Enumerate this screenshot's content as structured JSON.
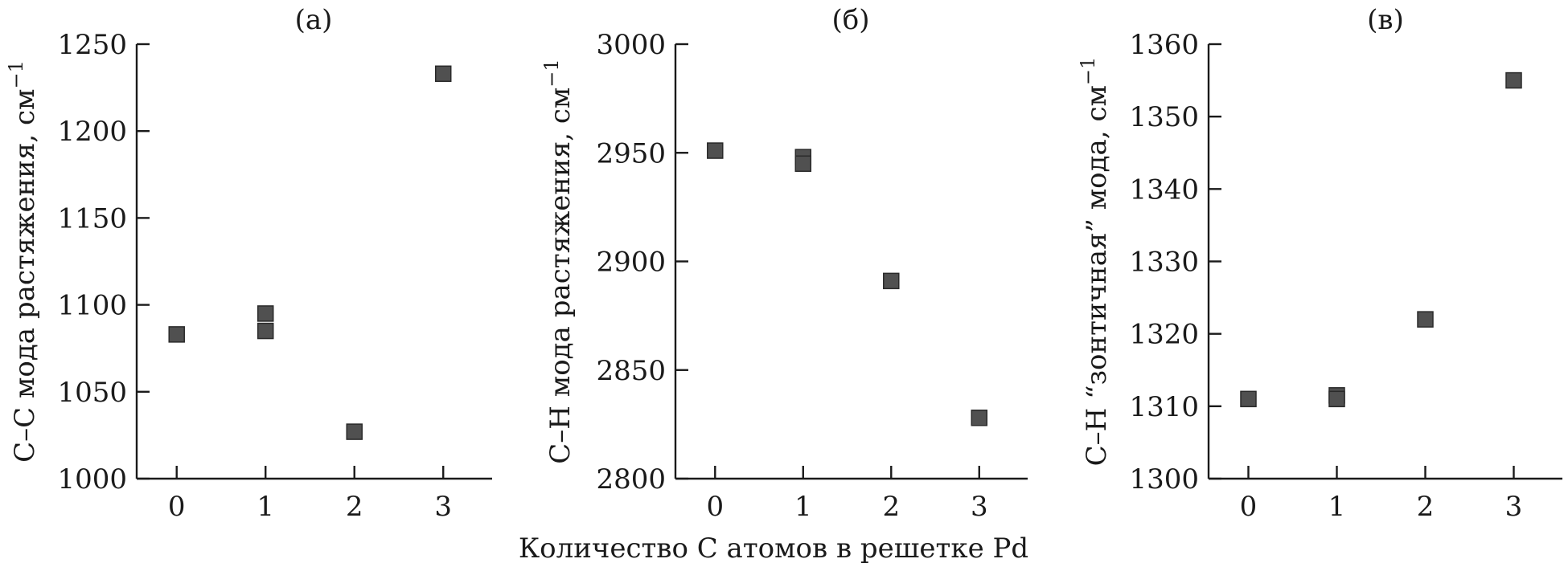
{
  "figure": {
    "xlabel": "Количество С атомов в решетке Pd"
  },
  "chart_data": [
    {
      "type": "scatter",
      "panel_label": "(а)",
      "ylabel": "С–С мода растяжения, см",
      "ylabel_sup": "−1",
      "xlim": [
        -0.45,
        3.55
      ],
      "ylim": [
        1000,
        1250
      ],
      "xticks": [
        0,
        1,
        2,
        3
      ],
      "yticks": [
        1000,
        1050,
        1100,
        1150,
        1200,
        1250
      ],
      "points": [
        {
          "x": 0,
          "y": 1083
        },
        {
          "x": 1,
          "y": 1095
        },
        {
          "x": 1,
          "y": 1085
        },
        {
          "x": 2,
          "y": 1027
        },
        {
          "x": 3,
          "y": 1233
        }
      ]
    },
    {
      "type": "scatter",
      "panel_label": "(б)",
      "ylabel": "С–Н мода растяжения, см",
      "ylabel_sup": "−1",
      "xlim": [
        -0.45,
        3.55
      ],
      "ylim": [
        2800,
        3000
      ],
      "xticks": [
        0,
        1,
        2,
        3
      ],
      "yticks": [
        2800,
        2850,
        2900,
        2950,
        3000
      ],
      "points": [
        {
          "x": 0,
          "y": 2951
        },
        {
          "x": 1,
          "y": 2948
        },
        {
          "x": 1,
          "y": 2945
        },
        {
          "x": 2,
          "y": 2891
        },
        {
          "x": 3,
          "y": 2828
        }
      ]
    },
    {
      "type": "scatter",
      "panel_label": "(в)",
      "ylabel": "С–Н “зонтичная” мода, см",
      "ylabel_sup": "−1",
      "xlim": [
        -0.45,
        3.55
      ],
      "ylim": [
        1300,
        1360
      ],
      "xticks": [
        0,
        1,
        2,
        3
      ],
      "yticks": [
        1300,
        1310,
        1320,
        1330,
        1340,
        1350,
        1360
      ],
      "points": [
        {
          "x": 0,
          "y": 1311
        },
        {
          "x": 1,
          "y": 1311.5
        },
        {
          "x": 1,
          "y": 1311
        },
        {
          "x": 2,
          "y": 1322
        },
        {
          "x": 3,
          "y": 1355
        }
      ]
    }
  ]
}
